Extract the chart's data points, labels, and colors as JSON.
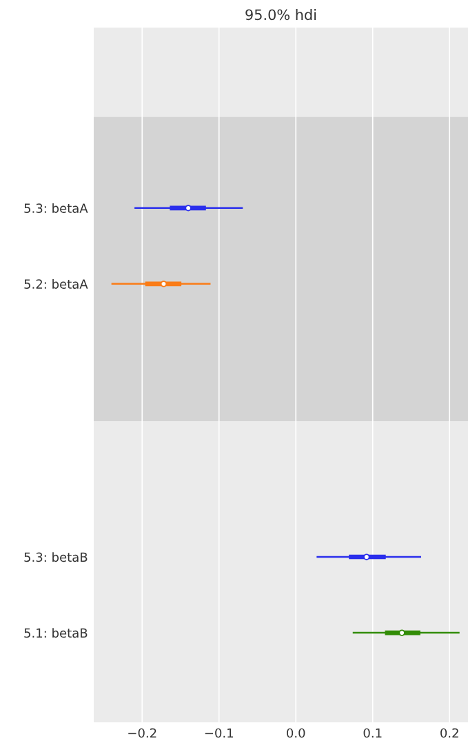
{
  "chart_data": [
    {
      "type": "box",
      "orientation": "horizontal",
      "title": "95.0% hdi",
      "categories": [
        "5.3: betaA",
        "5.2: betaA"
      ],
      "colors": [
        "#2a2eec",
        "#fa7c17"
      ],
      "boxes": [
        {
          "low": -0.21,
          "q1": -0.164,
          "median": -0.14,
          "q3": -0.117,
          "high": -0.069
        },
        {
          "low": -0.24,
          "q1": -0.196,
          "median": -0.172,
          "q3": -0.149,
          "high": -0.111
        }
      ],
      "bands": [
        {
          "axis": "y",
          "from": "5.3: betaA",
          "to": "5.2: betaA",
          "color": "#d4d4d4"
        }
      ],
      "xlim": [
        -0.263,
        0.224
      ],
      "xticks": [
        {
          "value": -0.2,
          "label": null
        },
        {
          "value": -0.1,
          "label": null
        },
        {
          "value": 0.0,
          "label": null
        },
        {
          "value": 0.1,
          "label": null
        },
        {
          "value": 0.2,
          "label": null
        }
      ],
      "tick_labels": "y",
      "grid": "x"
    },
    {
      "type": "box",
      "orientation": "horizontal",
      "categories": [
        "5.3: betaB",
        "5.1: betaB"
      ],
      "colors": [
        "#2a2eec",
        "#328c06"
      ],
      "boxes": [
        {
          "low": 0.027,
          "q1": 0.069,
          "median": 0.092,
          "q3": 0.117,
          "high": 0.163
        },
        {
          "low": 0.074,
          "q1": 0.116,
          "median": 0.138,
          "q3": 0.162,
          "high": 0.213
        }
      ],
      "xlim": [
        -0.263,
        0.224
      ],
      "xticks": [
        {
          "value": -0.2,
          "label": "−0.2"
        },
        {
          "value": -0.1,
          "label": "−0.1"
        },
        {
          "value": 0.0,
          "label": "0.0"
        },
        0.1,
        0.2
      ],
      "grid": "x"
    }
  ]
}
